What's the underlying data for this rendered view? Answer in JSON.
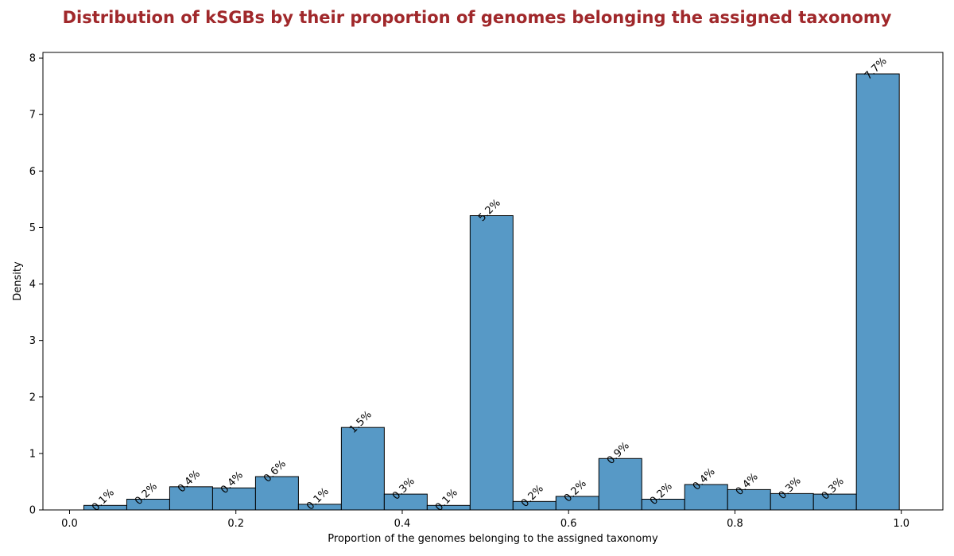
{
  "colors": {
    "title": "#a0282b",
    "bar_fill": "#5799c6",
    "bar_stroke": "#000000"
  },
  "chart_data": {
    "type": "bar",
    "title": "Distribution of kSGBs by their proportion of genomes belonging the assigned taxonomy",
    "xlabel": "Proportion of the genomes belonging to the assigned taxonomy",
    "ylabel": "Density",
    "xlim": [
      -0.032,
      1.05
    ],
    "ylim": [
      0,
      8.1
    ],
    "xticks": [
      0.0,
      0.2,
      0.4,
      0.6,
      0.8,
      1.0
    ],
    "xtick_labels": [
      "0.0",
      "0.2",
      "0.4",
      "0.6",
      "0.8",
      "1.0"
    ],
    "yticks": [
      0,
      1,
      2,
      3,
      4,
      5,
      6,
      7,
      8
    ],
    "ytick_labels": [
      "0",
      "1",
      "2",
      "3",
      "4",
      "5",
      "6",
      "7",
      "8"
    ],
    "grid": false,
    "legend": "none",
    "bins": [
      {
        "x0": 0.0172,
        "x1": 0.0688,
        "value": 0.08,
        "label": "0.1%"
      },
      {
        "x0": 0.0688,
        "x1": 0.1204,
        "value": 0.19,
        "label": "0.2%"
      },
      {
        "x0": 0.1204,
        "x1": 0.172,
        "value": 0.41,
        "label": "0.4%"
      },
      {
        "x0": 0.172,
        "x1": 0.2236,
        "value": 0.39,
        "label": "0.4%"
      },
      {
        "x0": 0.2236,
        "x1": 0.2752,
        "value": 0.59,
        "label": "0.6%"
      },
      {
        "x0": 0.2752,
        "x1": 0.3268,
        "value": 0.1,
        "label": "0.1%"
      },
      {
        "x0": 0.3268,
        "x1": 0.3784,
        "value": 1.46,
        "label": "1.5%"
      },
      {
        "x0": 0.3784,
        "x1": 0.43,
        "value": 0.28,
        "label": "0.3%"
      },
      {
        "x0": 0.43,
        "x1": 0.4816,
        "value": 0.08,
        "label": "0.1%"
      },
      {
        "x0": 0.4816,
        "x1": 0.5332,
        "value": 5.21,
        "label": "5.2%"
      },
      {
        "x0": 0.5332,
        "x1": 0.5848,
        "value": 0.15,
        "label": "0.2%"
      },
      {
        "x0": 0.5848,
        "x1": 0.6364,
        "value": 0.24,
        "label": "0.2%"
      },
      {
        "x0": 0.6364,
        "x1": 0.688,
        "value": 0.91,
        "label": "0.9%"
      },
      {
        "x0": 0.688,
        "x1": 0.7396,
        "value": 0.19,
        "label": "0.2%"
      },
      {
        "x0": 0.7396,
        "x1": 0.7912,
        "value": 0.45,
        "label": "0.4%"
      },
      {
        "x0": 0.7912,
        "x1": 0.8428,
        "value": 0.36,
        "label": "0.4%"
      },
      {
        "x0": 0.8428,
        "x1": 0.8944,
        "value": 0.29,
        "label": "0.3%"
      },
      {
        "x0": 0.8944,
        "x1": 0.946,
        "value": 0.28,
        "label": "0.3%"
      },
      {
        "x0": 0.946,
        "x1": 0.9976,
        "value": 7.72,
        "label": "7.7%"
      }
    ]
  }
}
